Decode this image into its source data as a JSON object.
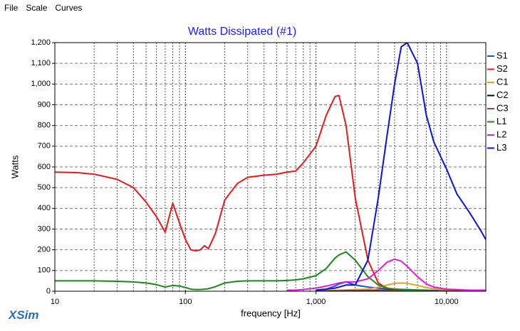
{
  "menu": [
    "File",
    "Scale",
    "Curves"
  ],
  "brand": "XSim",
  "chart_data": {
    "type": "line",
    "title": "Watts Dissipated (#1)",
    "xlabel": "frequency [Hz]",
    "ylabel": "Watts",
    "xscale": "log",
    "grid": true,
    "legend": "right",
    "xlim": [
      10,
      20000
    ],
    "ylim": [
      0,
      1200
    ],
    "xticks": [
      10,
      100,
      {
        "value": 1000,
        "label": "1,000"
      },
      {
        "value": 10000,
        "label": "10,000"
      }
    ],
    "xminor": [
      20,
      30,
      40,
      50,
      60,
      70,
      80,
      90,
      200,
      300,
      400,
      500,
      600,
      700,
      800,
      900,
      2000,
      3000,
      4000,
      5000,
      6000,
      7000,
      8000,
      9000
    ],
    "yticks": [
      0,
      100,
      200,
      300,
      400,
      500,
      600,
      700,
      800,
      900,
      {
        "value": 1000,
        "label": "1,000"
      },
      {
        "value": 1100,
        "label": "1,100"
      },
      {
        "value": 1200,
        "label": "1,200"
      }
    ],
    "x": [
      10,
      15,
      20,
      30,
      40,
      50,
      60,
      70,
      80,
      90,
      100,
      110,
      120,
      130,
      140,
      150,
      170,
      200,
      250,
      300,
      400,
      500,
      600,
      700,
      800,
      1000,
      1200,
      1400,
      1500,
      1700,
      2000,
      2500,
      3000,
      3500,
      4000,
      4500,
      5000,
      6000,
      7000,
      8000,
      10000,
      12000,
      15000,
      18000,
      20000
    ],
    "series": [
      {
        "name": "S1",
        "color": "#1a4cff",
        "values": [
          null,
          null,
          null,
          null,
          null,
          null,
          null,
          null,
          null,
          null,
          null,
          null,
          null,
          null,
          null,
          null,
          null,
          null,
          null,
          null,
          null,
          null,
          null,
          null,
          null,
          5,
          10,
          25,
          35,
          45,
          30,
          20,
          15,
          12,
          10,
          9,
          8,
          6,
          5,
          4,
          3,
          2,
          2,
          2,
          2
        ]
      },
      {
        "name": "S2",
        "color": "#e8191a",
        "values": [
          575,
          572,
          565,
          540,
          500,
          430,
          360,
          285,
          425,
          330,
          250,
          200,
          195,
          200,
          220,
          205,
          280,
          440,
          520,
          550,
          560,
          565,
          575,
          580,
          620,
          700,
          850,
          940,
          945,
          800,
          450,
          150,
          40,
          15,
          10,
          8,
          5,
          3,
          2,
          1,
          0,
          0,
          0,
          0,
          0
        ]
      },
      {
        "name": "C1",
        "color": "#e8a31a",
        "values": [
          null,
          null,
          null,
          null,
          null,
          null,
          null,
          null,
          null,
          null,
          null,
          null,
          null,
          null,
          null,
          null,
          null,
          null,
          null,
          null,
          null,
          null,
          null,
          null,
          null,
          2,
          3,
          4,
          5,
          6,
          8,
          10,
          20,
          30,
          38,
          40,
          38,
          28,
          18,
          12,
          5,
          2,
          1,
          0,
          0
        ]
      },
      {
        "name": "C2",
        "color": "#000000",
        "values": [
          null,
          null,
          null,
          null,
          null,
          null,
          null,
          null,
          null,
          null,
          null,
          null,
          null,
          null,
          null,
          null,
          null,
          null,
          null,
          null,
          null,
          null,
          null,
          null,
          null,
          1,
          1,
          2,
          2,
          3,
          3,
          4,
          5,
          5,
          5,
          5,
          4,
          3,
          2,
          2,
          1,
          1,
          0,
          0,
          0
        ]
      },
      {
        "name": "C3",
        "color": "#8b4a2b",
        "values": [
          null,
          null,
          null,
          null,
          null,
          null,
          null,
          null,
          null,
          null,
          null,
          null,
          null,
          null,
          null,
          null,
          null,
          null,
          null,
          null,
          null,
          null,
          null,
          null,
          null,
          1,
          1,
          1,
          2,
          2,
          2,
          3,
          3,
          4,
          4,
          4,
          3,
          3,
          2,
          2,
          1,
          1,
          0,
          0,
          0
        ]
      },
      {
        "name": "L1",
        "color": "#1a8a1a",
        "values": [
          50,
          50,
          50,
          48,
          45,
          40,
          32,
          20,
          28,
          25,
          18,
          10,
          8,
          8,
          10,
          12,
          22,
          40,
          48,
          50,
          50,
          50,
          52,
          55,
          60,
          75,
          110,
          160,
          175,
          190,
          150,
          70,
          30,
          15,
          10,
          8,
          5,
          3,
          2,
          1,
          0,
          0,
          0,
          0,
          0
        ]
      },
      {
        "name": "L2",
        "color": "#e01ae0",
        "values": [
          null,
          null,
          null,
          null,
          null,
          null,
          null,
          null,
          null,
          null,
          null,
          null,
          null,
          null,
          null,
          null,
          null,
          null,
          null,
          null,
          null,
          null,
          5,
          5,
          8,
          15,
          25,
          35,
          40,
          45,
          45,
          60,
          100,
          140,
          155,
          145,
          120,
          70,
          35,
          20,
          10,
          8,
          5,
          5,
          5
        ]
      },
      {
        "name": "L3",
        "color": "#0a14d8",
        "values": [
          null,
          null,
          null,
          null,
          null,
          null,
          null,
          null,
          null,
          null,
          null,
          null,
          null,
          null,
          null,
          null,
          null,
          null,
          null,
          null,
          null,
          null,
          null,
          null,
          null,
          5,
          10,
          15,
          20,
          30,
          30,
          150,
          450,
          750,
          1000,
          1180,
          1200,
          1100,
          850,
          720,
          590,
          470,
          380,
          300,
          250
        ]
      }
    ]
  }
}
